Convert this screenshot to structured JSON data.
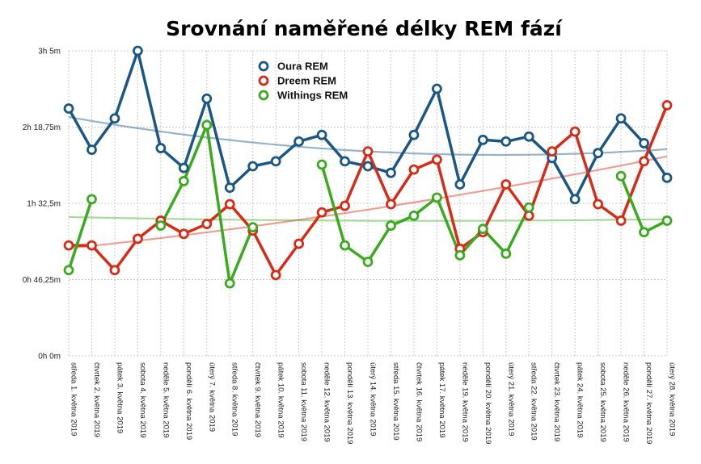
{
  "chart_data": {
    "type": "line",
    "title": "Srovnání naměřené délky REM fází",
    "xlabel": "",
    "ylabel": "",
    "y_unit": "minutes",
    "ylim": [
      0,
      185
    ],
    "yticks": [
      {
        "value": 0,
        "label": "0h 0m"
      },
      {
        "value": 46.25,
        "label": "0h 46,25m"
      },
      {
        "value": 92.5,
        "label": "1h 32,5m"
      },
      {
        "value": 138.75,
        "label": "2h 18,75m"
      },
      {
        "value": 185,
        "label": "3h 5m"
      }
    ],
    "grid": true,
    "legend_position": "top-center",
    "trendlines": "polynomial",
    "categories": [
      "středa 1. května 2019",
      "čtvrtek 2. května 2019",
      "pátek 3. května 2019",
      "sobota 4. května 2019",
      "neděle 5. května 2019",
      "pondělí 6. května 2019",
      "úterý 7. května 2019",
      "středa 8. května 2019",
      "čtvrtek 9. května 2019",
      "pátek 10. května 2019",
      "sobota 11. května 2019",
      "neděle 12. května 2019",
      "pondělí 13. května 2019",
      "úterý 14. května 2019",
      "středa 15. května 2019",
      "čtvrtek 16. května 2019",
      "pátek 17. května 2019",
      "neděle 19. května 2019",
      "pondělí 20. května 2019",
      "úterý 21. května 2019",
      "středa 22. května 2019",
      "čtvrtek 23. května 2019",
      "pátek 24. května 2019",
      "sobota 25. května 2019",
      "neděle 26. května 2019",
      "pondělí 27. května 2019",
      "úterý 28. května 2019"
    ],
    "series": [
      {
        "name": "Oura REM",
        "color": "#1a5785",
        "values": [
          150,
          125,
          144,
          185,
          126,
          114,
          156,
          102,
          115,
          118,
          130,
          134,
          118,
          115,
          111,
          134,
          162,
          104,
          131,
          130,
          133,
          120,
          95,
          123,
          144,
          129,
          108
        ]
      },
      {
        "name": "Dreem REM",
        "color": "#d62b16",
        "values": [
          67,
          67,
          52,
          71,
          82,
          74,
          80,
          92,
          76,
          49,
          68,
          87,
          91,
          124,
          92,
          113,
          119,
          65,
          75,
          104,
          85,
          124,
          136,
          92,
          82,
          118,
          152
        ]
      },
      {
        "name": "Withings REM",
        "color": "#3aaa1e",
        "values": [
          52,
          95,
          null,
          null,
          79,
          106,
          140,
          44,
          78,
          null,
          null,
          116,
          67,
          57,
          79,
          85,
          96,
          61,
          77,
          62,
          90,
          null,
          null,
          null,
          109,
          75,
          82
        ]
      }
    ]
  }
}
